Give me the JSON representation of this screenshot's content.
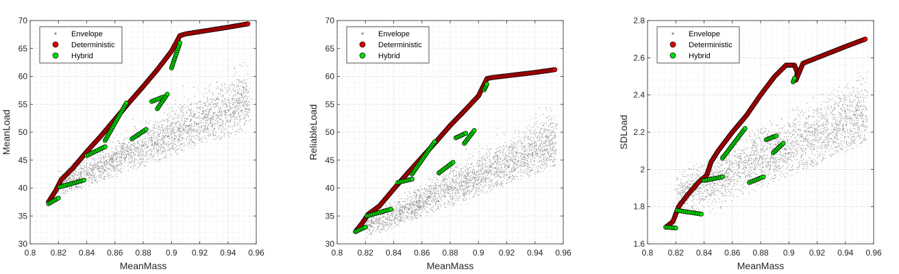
{
  "figure": {
    "background": "#ffffff"
  },
  "chart_data": [
    {
      "type": "scatter",
      "xlabel": "MeanMass",
      "ylabel": "MeanLoad",
      "xlim": [
        0.8,
        0.96
      ],
      "ylim": [
        30,
        70
      ],
      "xticks": [
        0.8,
        0.82,
        0.84,
        0.86,
        0.88,
        0.9,
        0.92,
        0.94,
        0.96
      ],
      "yticks": [
        30,
        35,
        40,
        45,
        50,
        55,
        60,
        65,
        70
      ],
      "xtick_labels": [
        "0.8",
        "0.82",
        "0.84",
        "0.86",
        "0.88",
        "0.9",
        "0.92",
        "0.94",
        "0.96"
      ],
      "ytick_labels": [
        "30",
        "35",
        "40",
        "45",
        "50",
        "55",
        "60",
        "65",
        "70"
      ],
      "grid": "major and minor, dotted",
      "legend": {
        "placement": "top-left",
        "entries": [
          "Envelope",
          "Deterministic",
          "Hybrid"
        ]
      },
      "series": [
        {
          "name": "Envelope",
          "marker": "small dots",
          "color": "#8c8c8c",
          "bands": [
            {
              "x": [
                0.82,
                0.955
              ],
              "lower": [
                38.5,
                50.5
              ],
              "upper": [
                43,
                67
              ],
              "mid": [
                40.5,
                56
              ],
              "spread": [
                2.5,
                6
              ]
            }
          ]
        },
        {
          "name": "Deterministic",
          "marker": "circle",
          "color": "#e00000",
          "x": [
            0.813,
            0.818,
            0.822,
            0.83,
            0.84,
            0.85,
            0.86,
            0.87,
            0.88,
            0.89,
            0.9,
            0.906,
            0.91,
            0.92,
            0.93,
            0.94,
            0.954
          ],
          "y": [
            37.5,
            39.5,
            41.5,
            43.5,
            46.5,
            49.3,
            52.3,
            55.3,
            58.2,
            61.2,
            64.5,
            67.3,
            67.6,
            68.0,
            68.4,
            68.8,
            69.4
          ]
        },
        {
          "name": "Hybrid",
          "marker": "circle",
          "color": "#00e000",
          "segments": [
            {
              "x": [
                0.813,
                0.82
              ],
              "y": [
                37.2,
                38.2
              ]
            },
            {
              "x": [
                0.821,
                0.838
              ],
              "y": [
                40.2,
                41.4
              ]
            },
            {
              "x": [
                0.84,
                0.853
              ],
              "y": [
                45.8,
                47.4
              ]
            },
            {
              "x": [
                0.853,
                0.868
              ],
              "y": [
                48.5,
                55.2
              ]
            },
            {
              "x": [
                0.872,
                0.882
              ],
              "y": [
                48.8,
                50.5
              ]
            },
            {
              "x": [
                0.886,
                0.894
              ],
              "y": [
                55.5,
                56.3
              ]
            },
            {
              "x": [
                0.89,
                0.897
              ],
              "y": [
                54.2,
                56.8
              ]
            },
            {
              "x": [
                0.9,
                0.906
              ],
              "y": [
                61.5,
                66
              ]
            }
          ]
        }
      ]
    },
    {
      "type": "scatter",
      "xlabel": "MeanMass",
      "ylabel": "ReliableLoad",
      "xlim": [
        0.8,
        0.96
      ],
      "ylim": [
        30,
        70
      ],
      "xticks": [
        0.8,
        0.82,
        0.84,
        0.86,
        0.88,
        0.9,
        0.92,
        0.94,
        0.96
      ],
      "yticks": [
        30,
        35,
        40,
        45,
        50,
        55,
        60,
        65,
        70
      ],
      "xtick_labels": [
        "0.8",
        "0.82",
        "0.84",
        "0.86",
        "0.88",
        "0.9",
        "0.92",
        "0.94",
        "0.96"
      ],
      "ytick_labels": [
        "30",
        "35",
        "40",
        "45",
        "50",
        "55",
        "60",
        "65",
        "70"
      ],
      "grid": "major and minor, dotted",
      "legend": {
        "placement": "top-left",
        "entries": [
          "Envelope",
          "Deterministic",
          "Hybrid"
        ]
      },
      "series": [
        {
          "name": "Envelope",
          "marker": "small dots",
          "color": "#8c8c8c",
          "bands": [
            {
              "x": [
                0.82,
                0.955
              ],
              "lower": [
                31,
                44
              ],
              "upper": [
                35,
                58
              ],
              "mid": [
                33,
                48.5
              ],
              "spread": [
                2.2,
                5.5
              ]
            }
          ]
        },
        {
          "name": "Deterministic",
          "marker": "circle",
          "color": "#e00000",
          "x": [
            0.813,
            0.818,
            0.822,
            0.83,
            0.84,
            0.85,
            0.86,
            0.87,
            0.88,
            0.89,
            0.9,
            0.906,
            0.91,
            0.92,
            0.93,
            0.94,
            0.954
          ],
          "y": [
            32.2,
            33.8,
            35.3,
            36.8,
            39.8,
            42.7,
            45.5,
            48.3,
            51.2,
            53.8,
            56.5,
            59.6,
            59.8,
            60.1,
            60.4,
            60.7,
            61.2
          ]
        },
        {
          "name": "Hybrid",
          "marker": "circle",
          "color": "#00e000",
          "segments": [
            {
              "x": [
                0.813,
                0.82
              ],
              "y": [
                32.2,
                33.0
              ]
            },
            {
              "x": [
                0.821,
                0.838
              ],
              "y": [
                35.0,
                36.2
              ]
            },
            {
              "x": [
                0.843,
                0.853
              ],
              "y": [
                41.0,
                41.6
              ]
            },
            {
              "x": [
                0.853,
                0.869
              ],
              "y": [
                42.5,
                48.3
              ]
            },
            {
              "x": [
                0.872,
                0.882
              ],
              "y": [
                42.7,
                44.6
              ]
            },
            {
              "x": [
                0.884,
                0.891
              ],
              "y": [
                49.0,
                49.8
              ]
            },
            {
              "x": [
                0.89,
                0.897
              ],
              "y": [
                48.0,
                50.3
              ]
            },
            {
              "x": [
                0.904,
                0.906
              ],
              "y": [
                57.6,
                58.6
              ]
            }
          ]
        }
      ]
    },
    {
      "type": "scatter",
      "xlabel": "MeanMass",
      "ylabel": "SDLoad",
      "xlim": [
        0.8,
        0.96
      ],
      "ylim": [
        1.6,
        2.8
      ],
      "xticks": [
        0.8,
        0.82,
        0.84,
        0.86,
        0.88,
        0.9,
        0.92,
        0.94,
        0.96
      ],
      "yticks": [
        1.6,
        1.8,
        2.0,
        2.2,
        2.4,
        2.6,
        2.8
      ],
      "xtick_labels": [
        "0.8",
        "0.82",
        "0.84",
        "0.86",
        "0.88",
        "0.9",
        "0.92",
        "0.94",
        "0.96"
      ],
      "ytick_labels": [
        "1.6",
        "1.8",
        "2",
        "2.2",
        "2.4",
        "2.6",
        "2.8"
      ],
      "grid": "major and minor, dotted",
      "legend": {
        "placement": "top-left",
        "entries": [
          "Envelope",
          "Deterministic",
          "Hybrid"
        ]
      },
      "series": [
        {
          "name": "Envelope",
          "marker": "small dots",
          "color": "#8c8c8c",
          "bands": [
            {
              "x": [
                0.82,
                0.955
              ],
              "lower": [
                1.68,
                2.15
              ],
              "upper": [
                1.98,
                2.55
              ],
              "mid": [
                1.86,
                2.3
              ],
              "spread": [
                0.12,
                0.22
              ]
            }
          ]
        },
        {
          "name": "Deterministic",
          "marker": "circle",
          "color": "#e00000",
          "x": [
            0.813,
            0.818,
            0.822,
            0.828,
            0.836,
            0.842,
            0.845,
            0.85,
            0.86,
            0.87,
            0.88,
            0.89,
            0.898,
            0.904,
            0.906,
            0.905,
            0.91,
            0.92,
            0.93,
            0.94,
            0.954
          ],
          "y": [
            1.69,
            1.72,
            1.8,
            1.86,
            1.93,
            1.97,
            2.04,
            2.1,
            2.2,
            2.29,
            2.4,
            2.5,
            2.56,
            2.56,
            2.52,
            2.48,
            2.57,
            2.6,
            2.63,
            2.66,
            2.7
          ]
        },
        {
          "name": "Hybrid",
          "marker": "circle",
          "color": "#00e000",
          "segments": [
            {
              "x": [
                0.813,
                0.82
              ],
              "y": [
                1.69,
                1.685
              ]
            },
            {
              "x": [
                0.821,
                0.838
              ],
              "y": [
                1.78,
                1.76
              ]
            },
            {
              "x": [
                0.84,
                0.853
              ],
              "y": [
                1.94,
                1.96
              ]
            },
            {
              "x": [
                0.853,
                0.869
              ],
              "y": [
                2.06,
                2.22
              ]
            },
            {
              "x": [
                0.872,
                0.882
              ],
              "y": [
                1.93,
                1.96
              ]
            },
            {
              "x": [
                0.884,
                0.891
              ],
              "y": [
                2.16,
                2.18
              ]
            },
            {
              "x": [
                0.889,
                0.896
              ],
              "y": [
                2.09,
                2.14
              ]
            },
            {
              "x": [
                0.903,
                0.904
              ],
              "y": [
                2.47,
                2.49
              ]
            }
          ]
        }
      ]
    }
  ]
}
